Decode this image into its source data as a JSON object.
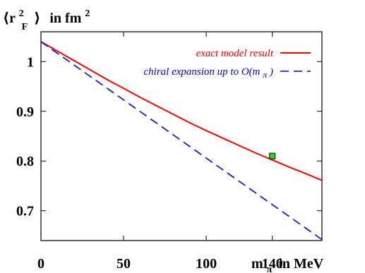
{
  "chart_data": {
    "type": "line",
    "ylabel": {
      "open": "⟨r",
      "sup": "2",
      "sub": "F",
      "close": "⟩",
      "unit": "in fm",
      "unit_sup": "2"
    },
    "xlabel": {
      "main": "m",
      "sub": "π",
      "unit": "in MeV"
    },
    "xlim": [
      0,
      170
    ],
    "ylim": [
      0.64,
      1.06
    ],
    "x_ticks": [
      {
        "value": 0,
        "label": "0"
      },
      {
        "value": 50,
        "label": "50"
      },
      {
        "value": 100,
        "label": "100"
      },
      {
        "value": 140,
        "label": "140"
      }
    ],
    "y_ticks": [
      {
        "value": 0.7,
        "label": "0.7"
      },
      {
        "value": 0.8,
        "label": "0.8"
      },
      {
        "value": 0.9,
        "label": "0.9"
      },
      {
        "value": 1.0,
        "label": "1"
      }
    ],
    "grid": false,
    "legend_position": "top-right",
    "series": [
      {
        "name": "exact model result",
        "color": "#ff0000",
        "dash": "solid",
        "x": [
          0,
          10,
          20,
          30,
          40,
          50,
          60,
          70,
          80,
          90,
          100,
          110,
          120,
          130,
          140,
          150,
          160,
          170
        ],
        "y": [
          1.04,
          1.021,
          1.002,
          0.983,
          0.964,
          0.946,
          0.928,
          0.911,
          0.894,
          0.877,
          0.861,
          0.846,
          0.831,
          0.816,
          0.802,
          0.788,
          0.775,
          0.761
        ]
      },
      {
        "name_main": "chiral expansion up to O(m",
        "name_sub": "π",
        "name_close": ")",
        "color": "#0000dd",
        "dash": "dashed",
        "x": [
          0,
          170
        ],
        "y": [
          1.04,
          0.642
        ]
      }
    ],
    "marker": {
      "x": 140,
      "y": 0.81,
      "fill": "#22dd22",
      "stroke": "#000000",
      "shape": "square"
    }
  }
}
